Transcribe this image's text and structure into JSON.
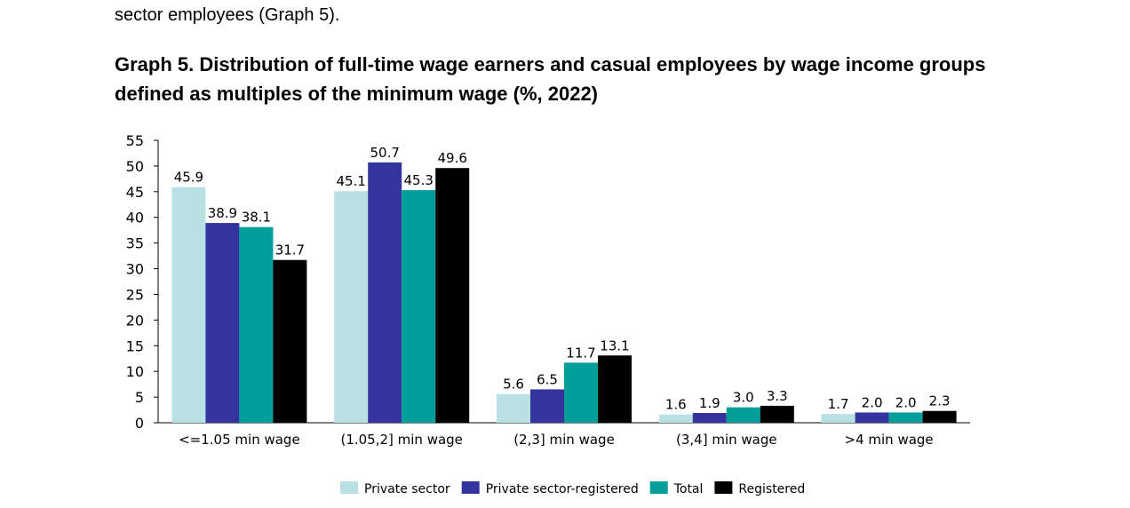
{
  "paragraph_tail": "sector employees (Graph 5).",
  "chart_data": {
    "type": "bar",
    "title": "Graph 5. Distribution of full-time wage earners and casual employees by wage income groups defined as multiples of the minimum wage (%, 2022)",
    "xlabel": "",
    "ylabel": "",
    "ylim": [
      0,
      55
    ],
    "yticks": [
      0,
      5,
      10,
      15,
      20,
      25,
      30,
      35,
      40,
      45,
      50,
      55
    ],
    "grid": false,
    "legend_position": "bottom",
    "categories": [
      "<=1.05 min wage",
      "(1.05,2] min wage",
      "(2,3] min wage",
      "(3,4] min wage",
      ">4 min wage"
    ],
    "series": [
      {
        "name": "Private sector",
        "color": "#b9e1e4",
        "values": [
          45.9,
          45.1,
          5.6,
          1.6,
          1.7
        ]
      },
      {
        "name": "Private sector-registered",
        "color": "#35349e",
        "values": [
          38.9,
          50.7,
          6.5,
          1.9,
          2.0
        ]
      },
      {
        "name": "Total",
        "color": "#009e98",
        "values": [
          38.1,
          45.3,
          11.7,
          3.0,
          2.0
        ]
      },
      {
        "name": "Registered",
        "color": "#000000",
        "values": [
          31.7,
          49.6,
          13.1,
          3.3,
          2.3
        ]
      }
    ]
  }
}
